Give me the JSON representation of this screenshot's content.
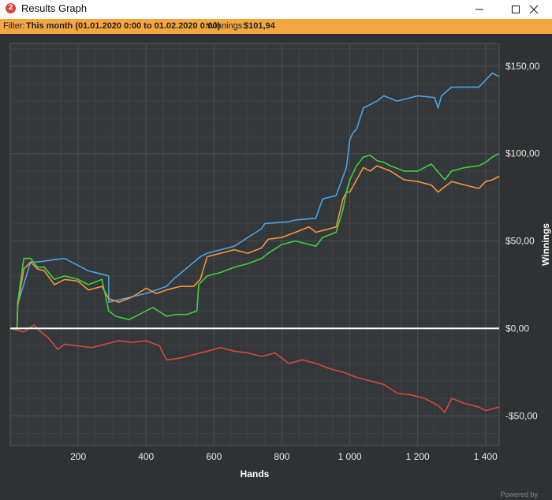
{
  "window": {
    "title": "Results Graph",
    "icon": "app-logo-icon",
    "buttons": [
      "minimize-icon",
      "maximize-icon",
      "close-icon"
    ]
  },
  "filter_bar": {
    "label": "Filter:",
    "value": "This month (01.01.2020 0:00 to 01.02.2020 0:00)",
    "winnings_label": "Winnings:",
    "winnings_value": "$101,94"
  },
  "footer": {
    "powered_text": "Powered by"
  },
  "colors": {
    "background": "#2f3133",
    "plot_background": "#35383a",
    "grid": "#4a4e51",
    "zero_line": "#ffffff",
    "accent": "#f4a640"
  },
  "chart_data": {
    "type": "line",
    "xlabel": "Hands",
    "ylabel": "Winnings",
    "xlim": [
      0,
      1440
    ],
    "ylim": [
      -67,
      163
    ],
    "x_ticks": [
      200,
      400,
      600,
      800,
      1000,
      1200,
      1400
    ],
    "x_tick_labels": [
      "200",
      "400",
      "600",
      "800",
      "1 000",
      "1 200",
      "1 400"
    ],
    "y_ticks": [
      150,
      100,
      50,
      0,
      -50
    ],
    "y_tick_labels": [
      "$150,00",
      "$100,00",
      "$50,00",
      "$0,00",
      "-$50,00"
    ],
    "grid": true,
    "legend": "none",
    "series": [
      {
        "color": "#4aa3e6",
        "x": [
          0,
          20,
          22,
          60,
          80,
          160,
          230,
          290,
          290,
          400,
          460,
          480,
          560,
          580,
          660,
          740,
          750,
          820,
          840,
          900,
          920,
          940,
          960,
          990,
          1000,
          1010,
          1020,
          1040,
          1060,
          1080,
          1100,
          1140,
          1200,
          1250,
          1260,
          1270,
          1300,
          1380,
          1400,
          1420,
          1440
        ],
        "y": [
          0,
          0,
          14,
          38,
          38,
          40,
          33,
          30,
          15,
          20,
          24,
          28,
          41,
          43,
          47,
          57,
          60,
          61,
          62,
          63,
          74,
          75,
          76,
          92,
          108,
          112,
          114,
          126,
          128,
          130,
          133,
          130,
          133,
          132,
          126,
          133,
          138,
          138,
          142,
          146,
          144
        ]
      },
      {
        "color": "#f0963a",
        "x": [
          0,
          20,
          22,
          40,
          60,
          80,
          100,
          130,
          160,
          200,
          230,
          270,
          290,
          320,
          360,
          400,
          430,
          460,
          500,
          540,
          560,
          580,
          620,
          660,
          700,
          740,
          760,
          800,
          840,
          880,
          900,
          920,
          960,
          980,
          990,
          1000,
          1040,
          1060,
          1080,
          1120,
          1160,
          1200,
          1240,
          1260,
          1280,
          1300,
          1340,
          1380,
          1400,
          1420,
          1440
        ],
        "y": [
          0,
          0,
          13,
          34,
          38,
          34,
          33,
          25,
          28,
          27,
          22,
          24,
          17,
          15,
          18,
          23,
          20,
          22,
          24,
          24,
          28,
          41,
          43,
          45,
          43,
          46,
          51,
          52,
          55,
          58,
          55,
          56,
          58,
          74,
          78,
          78,
          92,
          90,
          93,
          90,
          85,
          84,
          82,
          78,
          81,
          84,
          82,
          80,
          84,
          85,
          87
        ]
      },
      {
        "color": "#3dd13d",
        "x": [
          0,
          20,
          22,
          40,
          60,
          80,
          100,
          130,
          160,
          200,
          230,
          270,
          290,
          310,
          350,
          380,
          420,
          460,
          490,
          520,
          550,
          555,
          580,
          620,
          660,
          700,
          740,
          760,
          800,
          840,
          880,
          900,
          920,
          960,
          980,
          990,
          1000,
          1020,
          1040,
          1060,
          1080,
          1100,
          1120,
          1160,
          1200,
          1240,
          1280,
          1300,
          1340,
          1380,
          1400,
          1420,
          1440
        ],
        "y": [
          0,
          0,
          15,
          40,
          40,
          35,
          35,
          28,
          30,
          28,
          25,
          28,
          10,
          7,
          5,
          8,
          12,
          7,
          8,
          8,
          10,
          25,
          30,
          32,
          35,
          37,
          40,
          43,
          48,
          50,
          48,
          47,
          52,
          55,
          68,
          78,
          85,
          93,
          98,
          99,
          96,
          95,
          93,
          90,
          90,
          94,
          85,
          90,
          92,
          93,
          95,
          98,
          100
        ]
      },
      {
        "color": "#d9473f",
        "x": [
          0,
          40,
          70,
          90,
          110,
          140,
          160,
          200,
          240,
          280,
          320,
          360,
          400,
          440,
          460,
          500,
          540,
          580,
          620,
          660,
          700,
          740,
          780,
          820,
          860,
          900,
          940,
          980,
          1020,
          1060,
          1100,
          1140,
          1180,
          1220,
          1260,
          1280,
          1300,
          1340,
          1380,
          1400,
          1420,
          1440
        ],
        "y": [
          0,
          -2,
          2,
          -2,
          -5,
          -12,
          -9,
          -10,
          -11,
          -9,
          -7,
          -8,
          -7,
          -10,
          -18,
          -17,
          -15,
          -13,
          -11,
          -13,
          -14,
          -16,
          -14,
          -20,
          -18,
          -20,
          -23,
          -25,
          -28,
          -30,
          -32,
          -37,
          -38,
          -40,
          -44,
          -48,
          -40,
          -43,
          -45,
          -47,
          -46,
          -45
        ]
      }
    ]
  }
}
